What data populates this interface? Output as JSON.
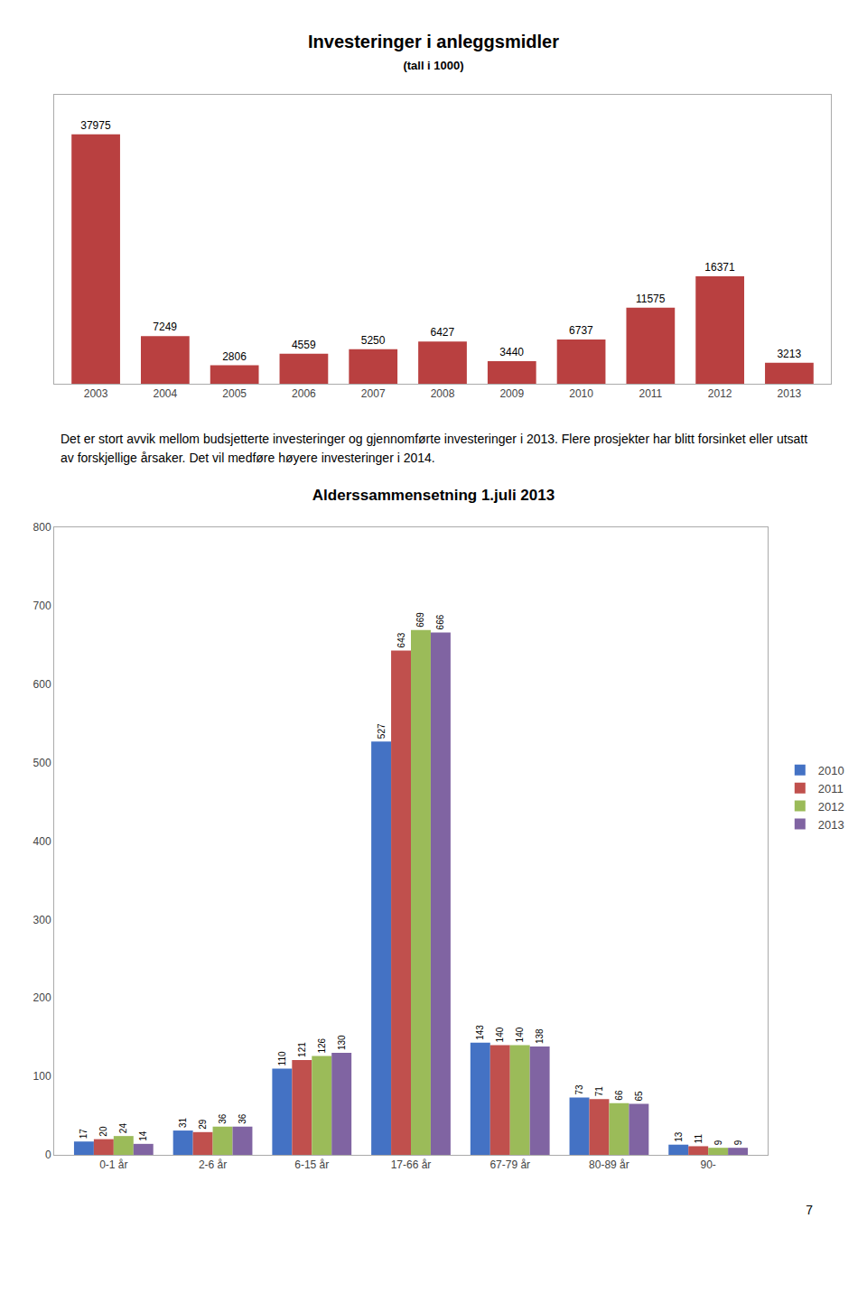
{
  "chart_data": [
    {
      "type": "bar",
      "title": "Investeringer i anleggsmidler",
      "subtitle": "(tall i 1000)",
      "categories": [
        "2003",
        "2004",
        "2005",
        "2006",
        "2007",
        "2008",
        "2009",
        "2010",
        "2011",
        "2012",
        "2013"
      ],
      "values": [
        37975,
        7249,
        2806,
        4559,
        5250,
        6427,
        3440,
        6737,
        11575,
        16371,
        3213
      ],
      "color": "#b94040",
      "ylim": [
        0,
        44000
      ],
      "yticks": [],
      "tick_labels": "x",
      "data_labels": true,
      "grid": false,
      "annotations": [
        "Det er stort avvik mellom budsjetterte investeringer og gjennomførte investeringer i 2013. Flere prosjekter har blitt forsinket eller utsatt av forskjellige årsaker. Det vil medføre høyere investeringer i 2014."
      ]
    },
    {
      "type": "bar",
      "title": "Alderssammensetning 1.juli 2013",
      "categories": [
        "0-1 år",
        "2-6 år",
        "6-15 år",
        "17-66 år",
        "67-79 år",
        "80-89 år",
        "90-"
      ],
      "series": [
        {
          "name": "2010",
          "color": "#4472c4",
          "values": [
            17,
            31,
            110,
            527,
            143,
            73,
            13
          ]
        },
        {
          "name": "2011",
          "color": "#c0504d",
          "values": [
            20,
            29,
            121,
            643,
            140,
            71,
            11
          ]
        },
        {
          "name": "2012",
          "color": "#9bbb59",
          "values": [
            24,
            36,
            126,
            669,
            140,
            66,
            9
          ]
        },
        {
          "name": "2013",
          "color": "#8064a2",
          "values": [
            14,
            36,
            130,
            666,
            138,
            65,
            9
          ]
        }
      ],
      "ylim": [
        0,
        800
      ],
      "yticks": [
        0,
        100,
        200,
        300,
        400,
        500,
        600,
        700,
        800
      ],
      "data_labels": true,
      "legend": "right",
      "grid": false,
      "annotations": [
        "7"
      ]
    }
  ]
}
